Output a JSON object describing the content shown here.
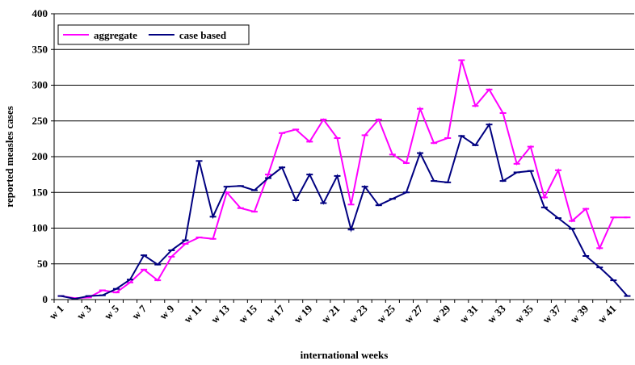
{
  "chart_data": {
    "type": "line",
    "xlabel": "international weeks",
    "ylabel": "reported measles cases",
    "categories": [
      "w 1",
      null,
      "w 3",
      null,
      "w 5",
      null,
      "w 7",
      null,
      "w 9",
      null,
      "w 11",
      null,
      "w 13",
      null,
      "w 15",
      null,
      "w 17",
      null,
      "w 19",
      null,
      "w 21",
      null,
      "w 23",
      null,
      "w 25",
      null,
      "w 27",
      null,
      "w 29",
      null,
      "w 31",
      null,
      "w 33",
      null,
      "w 35",
      null,
      "w 37",
      null,
      "w 39",
      null,
      "w 41",
      null
    ],
    "series": [
      {
        "name": "aggregate",
        "color": "#ff00ff",
        "values": [
          5,
          2,
          3,
          13,
          10,
          24,
          42,
          27,
          60,
          78,
          87,
          85,
          150,
          128,
          123,
          175,
          233,
          238,
          221,
          252,
          226,
          133,
          230,
          252,
          203,
          191,
          267,
          219,
          226,
          335,
          271,
          294,
          261,
          190,
          214,
          143,
          181,
          110,
          127,
          72,
          115,
          115
        ]
      },
      {
        "name": "case based",
        "color": "#000080",
        "values": [
          5,
          1,
          5,
          6,
          15,
          28,
          62,
          49,
          69,
          83,
          194,
          116,
          158,
          159,
          153,
          170,
          185,
          139,
          175,
          135,
          173,
          98,
          158,
          132,
          141,
          150,
          205,
          166,
          164,
          229,
          216,
          245,
          166,
          178,
          180,
          129,
          114,
          99,
          61,
          45,
          27,
          5
        ]
      }
    ],
    "ylim": [
      0,
      400
    ],
    "yticks": [
      0,
      50,
      100,
      150,
      200,
      250,
      300,
      350,
      400
    ],
    "grid": true,
    "legend": "upper left"
  }
}
